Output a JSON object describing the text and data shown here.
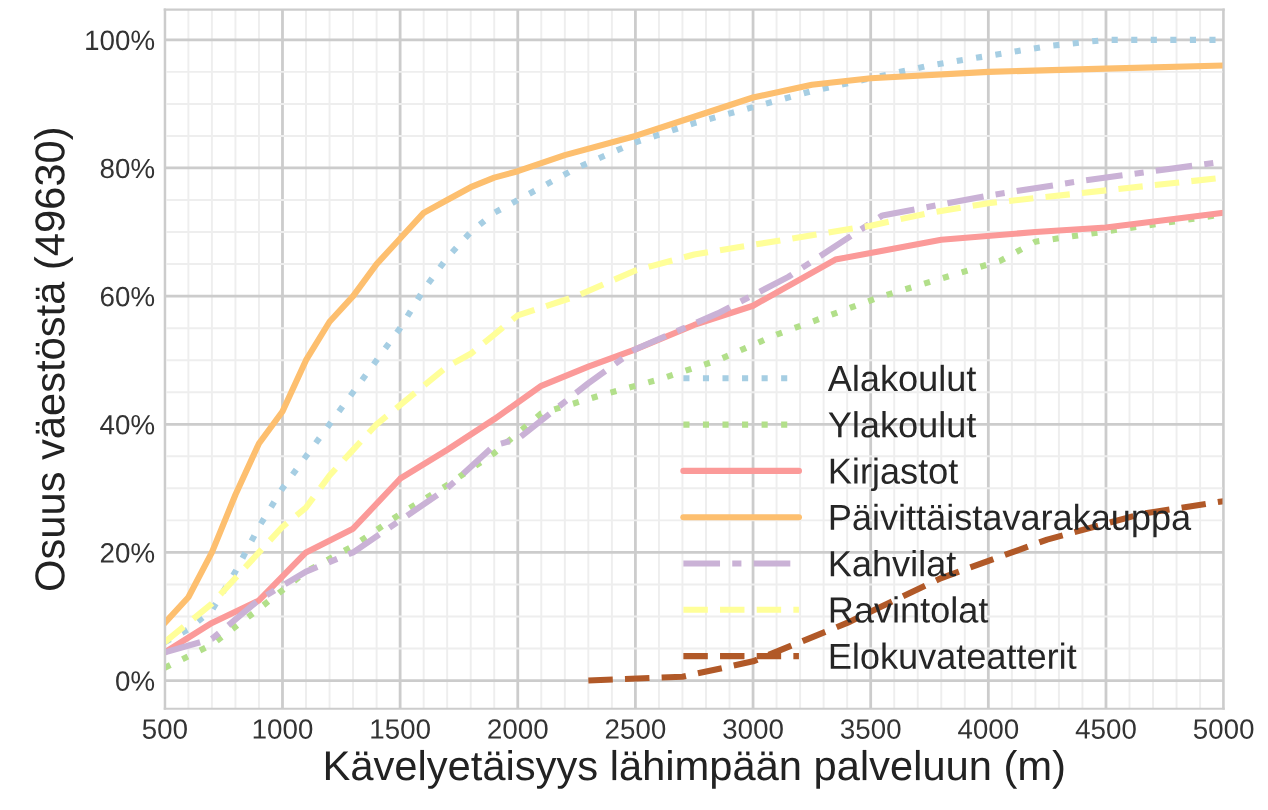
{
  "chart_data": {
    "type": "line",
    "xlabel": "Kävelyetäisyys lähimpään palveluun (m)",
    "ylabel": "Osuus väestöstä (49630)",
    "xlim": [
      500,
      5000
    ],
    "xticks": [
      500,
      1000,
      1500,
      2000,
      2500,
      3000,
      3500,
      4000,
      4500,
      5000
    ],
    "ylim": [
      -4.4,
      104.7
    ],
    "yticks": [
      {
        "value": 0,
        "label": "0%"
      },
      {
        "value": 20,
        "label": "20%"
      },
      {
        "value": 40,
        "label": "40%"
      },
      {
        "value": 60,
        "label": "60%"
      },
      {
        "value": 80,
        "label": "80%"
      },
      {
        "value": 100,
        "label": "100%"
      }
    ],
    "grid": true,
    "legend": "lower right",
    "series": [
      {
        "name": "Alakoulut",
        "color": "#a6cee3",
        "line_style": "dotted",
        "x": [
          500,
          600,
          700,
          800,
          900,
          1000,
          1100,
          1200,
          1300,
          1400,
          1500,
          1600,
          1700,
          1800,
          1900,
          2000,
          2250,
          2500,
          2750,
          3000,
          3250,
          3500,
          3750,
          4000,
          4250,
          4500,
          5000
        ],
        "values": [
          6,
          8,
          11,
          17,
          24,
          30,
          35,
          40,
          45,
          50,
          55,
          61,
          66,
          70,
          73,
          75,
          80,
          84,
          87,
          89.5,
          92,
          94,
          96,
          97.5,
          99,
          100,
          100
        ]
      },
      {
        "name": "Ylakoulut",
        "color": "#b2df8a",
        "line_style": "dotted",
        "x": [
          500,
          700,
          900,
          1100,
          1300,
          1500,
          1700,
          1900,
          2100,
          2350,
          2600,
          2850,
          3100,
          3550,
          4050,
          4200,
          4950,
          5000
        ],
        "values": [
          2,
          5.6,
          11.2,
          17,
          21,
          26,
          30.5,
          35.5,
          41.7,
          44.5,
          47,
          50,
          54,
          60,
          65.5,
          68.5,
          72.5,
          73
        ]
      },
      {
        "name": "Kirjastot",
        "color": "#fb9a99",
        "line_style": "solid",
        "x": [
          500,
          700,
          900,
          1100,
          1300,
          1500,
          1700,
          1900,
          2100,
          2300,
          2500,
          2750,
          3000,
          3350,
          3800,
          4200,
          4500,
          5000
        ],
        "values": [
          4.4,
          9,
          12.5,
          20,
          23.7,
          31.5,
          36,
          40.8,
          46,
          49,
          51.7,
          55.5,
          58.5,
          65.7,
          68.8,
          70,
          70.7,
          73
        ]
      },
      {
        "name": "Päivittäistavarakauppa",
        "color": "#fdbf6f",
        "line_style": "solid",
        "x": [
          500,
          600,
          700,
          800,
          900,
          1000,
          1100,
          1200,
          1300,
          1400,
          1500,
          1600,
          1700,
          1800,
          1900,
          2000,
          2200,
          2500,
          2750,
          3000,
          3250,
          3500,
          4000,
          4500,
          5000
        ],
        "values": [
          9,
          13,
          20,
          29,
          37,
          42,
          50,
          56,
          60,
          65,
          69,
          73,
          75,
          77,
          78.5,
          79.5,
          82,
          85,
          88,
          91,
          93,
          94,
          95,
          95.5,
          96
        ]
      },
      {
        "name": "Kahvilat",
        "color": "#cab2d6",
        "line_style": "dashdot",
        "x": [
          500,
          700,
          900,
          1100,
          1300,
          1500,
          1700,
          1900,
          2000,
          2300,
          2500,
          2850,
          3150,
          3550,
          4000,
          4400,
          5000
        ],
        "values": [
          4.4,
          6.5,
          12.6,
          17,
          20,
          25,
          30,
          36.7,
          37.7,
          46.4,
          51.7,
          57.3,
          63,
          72.6,
          75.7,
          78,
          81
        ]
      },
      {
        "name": "Ravintolat",
        "color": "#ffff99",
        "line_style": "dashed",
        "x": [
          500,
          600,
          700,
          800,
          900,
          1000,
          1100,
          1200,
          1300,
          1400,
          1500,
          1600,
          1700,
          1800,
          1900,
          2000,
          2250,
          2500,
          2750,
          3000,
          3250,
          3500,
          3750,
          4000,
          4500,
          5000
        ],
        "values": [
          6,
          9,
          12,
          16,
          20,
          24,
          27,
          32,
          36,
          40,
          43,
          46,
          49,
          51,
          54,
          57,
          60,
          64,
          66.5,
          68,
          69.5,
          71,
          73,
          74.5,
          76.5,
          78.5
        ]
      },
      {
        "name": "Elokuvateatterit",
        "color": "#b15928",
        "line_style": "dashed",
        "x": [
          2300,
          2700,
          3000,
          3400,
          3800,
          4250,
          4650,
          5000
        ],
        "values": [
          0,
          0.6,
          3,
          9,
          16,
          22,
          26,
          28
        ]
      }
    ]
  }
}
